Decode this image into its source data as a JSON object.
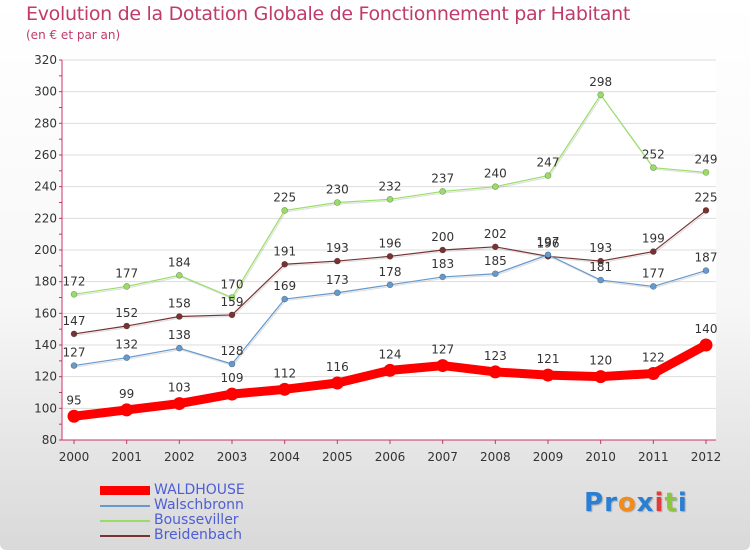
{
  "chart_data": {
    "type": "line",
    "title": "Evolution de la Dotation Globale de Fonctionnement par Habitant",
    "subtitle": "(en € et par an)",
    "x": [
      "2000",
      "2001",
      "2002",
      "2003",
      "2004",
      "2005",
      "2006",
      "2007",
      "2008",
      "2009",
      "2010",
      "2011",
      "2012"
    ],
    "ylim": [
      80,
      320
    ],
    "yticks": [
      80,
      100,
      120,
      140,
      160,
      180,
      200,
      220,
      240,
      260,
      280,
      300,
      320
    ],
    "grid": "horizontal",
    "legend_position": "bottom-left",
    "series": [
      {
        "name": "WALDHOUSE",
        "color": "#ff0000",
        "values": [
          95,
          99,
          103,
          109,
          112,
          116,
          124,
          127,
          123,
          121,
          120,
          122,
          140
        ]
      },
      {
        "name": "Walschbronn",
        "color": "#6699cc",
        "values": [
          127,
          132,
          138,
          128,
          169,
          173,
          178,
          183,
          185,
          197,
          181,
          177,
          187
        ]
      },
      {
        "name": "Bousseviller",
        "color": "#99dd66",
        "values": [
          172,
          177,
          184,
          170,
          225,
          230,
          232,
          237,
          240,
          247,
          298,
          252,
          249
        ]
      },
      {
        "name": "Breidenbach",
        "color": "#773333",
        "values": [
          147,
          152,
          158,
          159,
          191,
          193,
          196,
          200,
          202,
          196,
          193,
          199,
          225
        ]
      }
    ]
  },
  "logo": {
    "text": "Proxiti",
    "letters": [
      "P",
      "r",
      "o",
      "x",
      "i",
      "t",
      "i"
    ],
    "colors": [
      "#2a7fd4",
      "#2a7fd4",
      "#f28a1c",
      "#2a7fd4",
      "#e03c3c",
      "#8cc63f",
      "#2a7fd4"
    ]
  }
}
